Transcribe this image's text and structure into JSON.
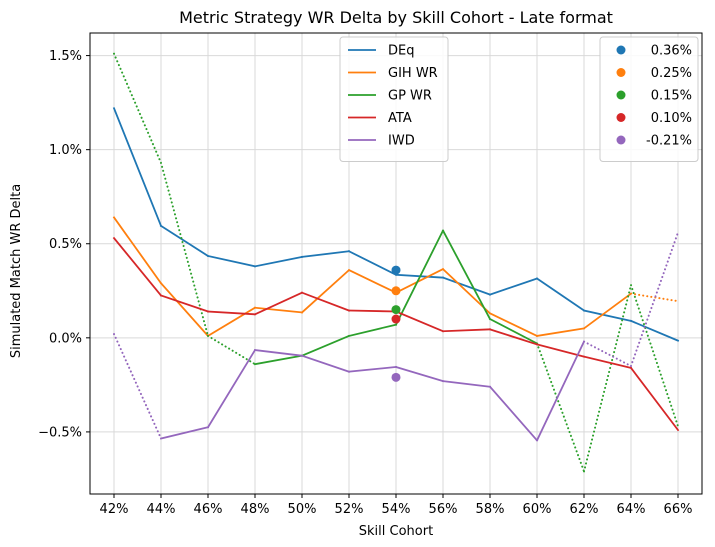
{
  "chart_data": {
    "type": "line",
    "title": "Metric Strategy WR Delta by Skill Cohort - Late format",
    "xlabel": "Skill Cohort",
    "ylabel": "Simulated Match WR Delta",
    "categories": [
      "42%",
      "44%",
      "46%",
      "48%",
      "50%",
      "52%",
      "54%",
      "56%",
      "58%",
      "60%",
      "62%",
      "64%",
      "66%"
    ],
    "ylim": [
      -0.83,
      1.62
    ],
    "yticks": [
      -0.5,
      0.0,
      0.5,
      1.0,
      1.5
    ],
    "ytick_labels": [
      "−0.5%",
      "0.0%",
      "0.5%",
      "1.0%",
      "1.5%"
    ],
    "grid": true,
    "legend_location": "upper center",
    "secondary_legend_location": "upper right",
    "series": [
      {
        "name": "DEq",
        "color": "#1f77b4",
        "values": [
          1.22,
          0.595,
          0.435,
          0.38,
          0.43,
          0.46,
          0.335,
          0.32,
          0.23,
          0.315,
          0.145,
          0.09,
          -0.015
        ],
        "dotted_segments": []
      },
      {
        "name": "GIH WR",
        "color": "#ff7f0e",
        "values": [
          0.64,
          0.29,
          0.01,
          0.16,
          0.135,
          0.36,
          0.24,
          0.365,
          0.13,
          0.01,
          0.05,
          0.235,
          0.195
        ],
        "dotted_segments": [
          11
        ]
      },
      {
        "name": "GP WR",
        "color": "#2ca02c",
        "values": [
          1.51,
          0.93,
          0.01,
          -0.14,
          -0.095,
          0.01,
          0.07,
          0.57,
          0.1,
          -0.03,
          -0.71,
          0.28,
          -0.47
        ],
        "dotted_segments": [
          0,
          1,
          2,
          9,
          10,
          11
        ]
      },
      {
        "name": "ATA",
        "color": "#d62728",
        "values": [
          0.53,
          0.225,
          0.14,
          0.125,
          0.24,
          0.145,
          0.14,
          0.035,
          0.045,
          -0.035,
          -0.1,
          -0.16,
          -0.49
        ],
        "dotted_segments": []
      },
      {
        "name": "IWD",
        "color": "#9467bd",
        "values": [
          0.02,
          -0.535,
          -0.475,
          -0.065,
          -0.095,
          -0.18,
          -0.155,
          -0.23,
          -0.26,
          -0.545,
          -0.02,
          -0.15,
          0.56
        ],
        "dotted_segments": [
          0,
          10,
          11
        ]
      }
    ],
    "marker_points": [
      {
        "label": "0.36%",
        "color": "#1f77b4",
        "x": "54%",
        "y": 0.36
      },
      {
        "label": "0.25%",
        "color": "#ff7f0e",
        "x": "54%",
        "y": 0.25
      },
      {
        "label": "0.15%",
        "color": "#2ca02c",
        "x": "54%",
        "y": 0.15
      },
      {
        "label": "0.10%",
        "color": "#d62728",
        "x": "54%",
        "y": 0.1
      },
      {
        "label": "-0.21%",
        "color": "#9467bd",
        "x": "54%",
        "y": -0.21
      }
    ]
  }
}
